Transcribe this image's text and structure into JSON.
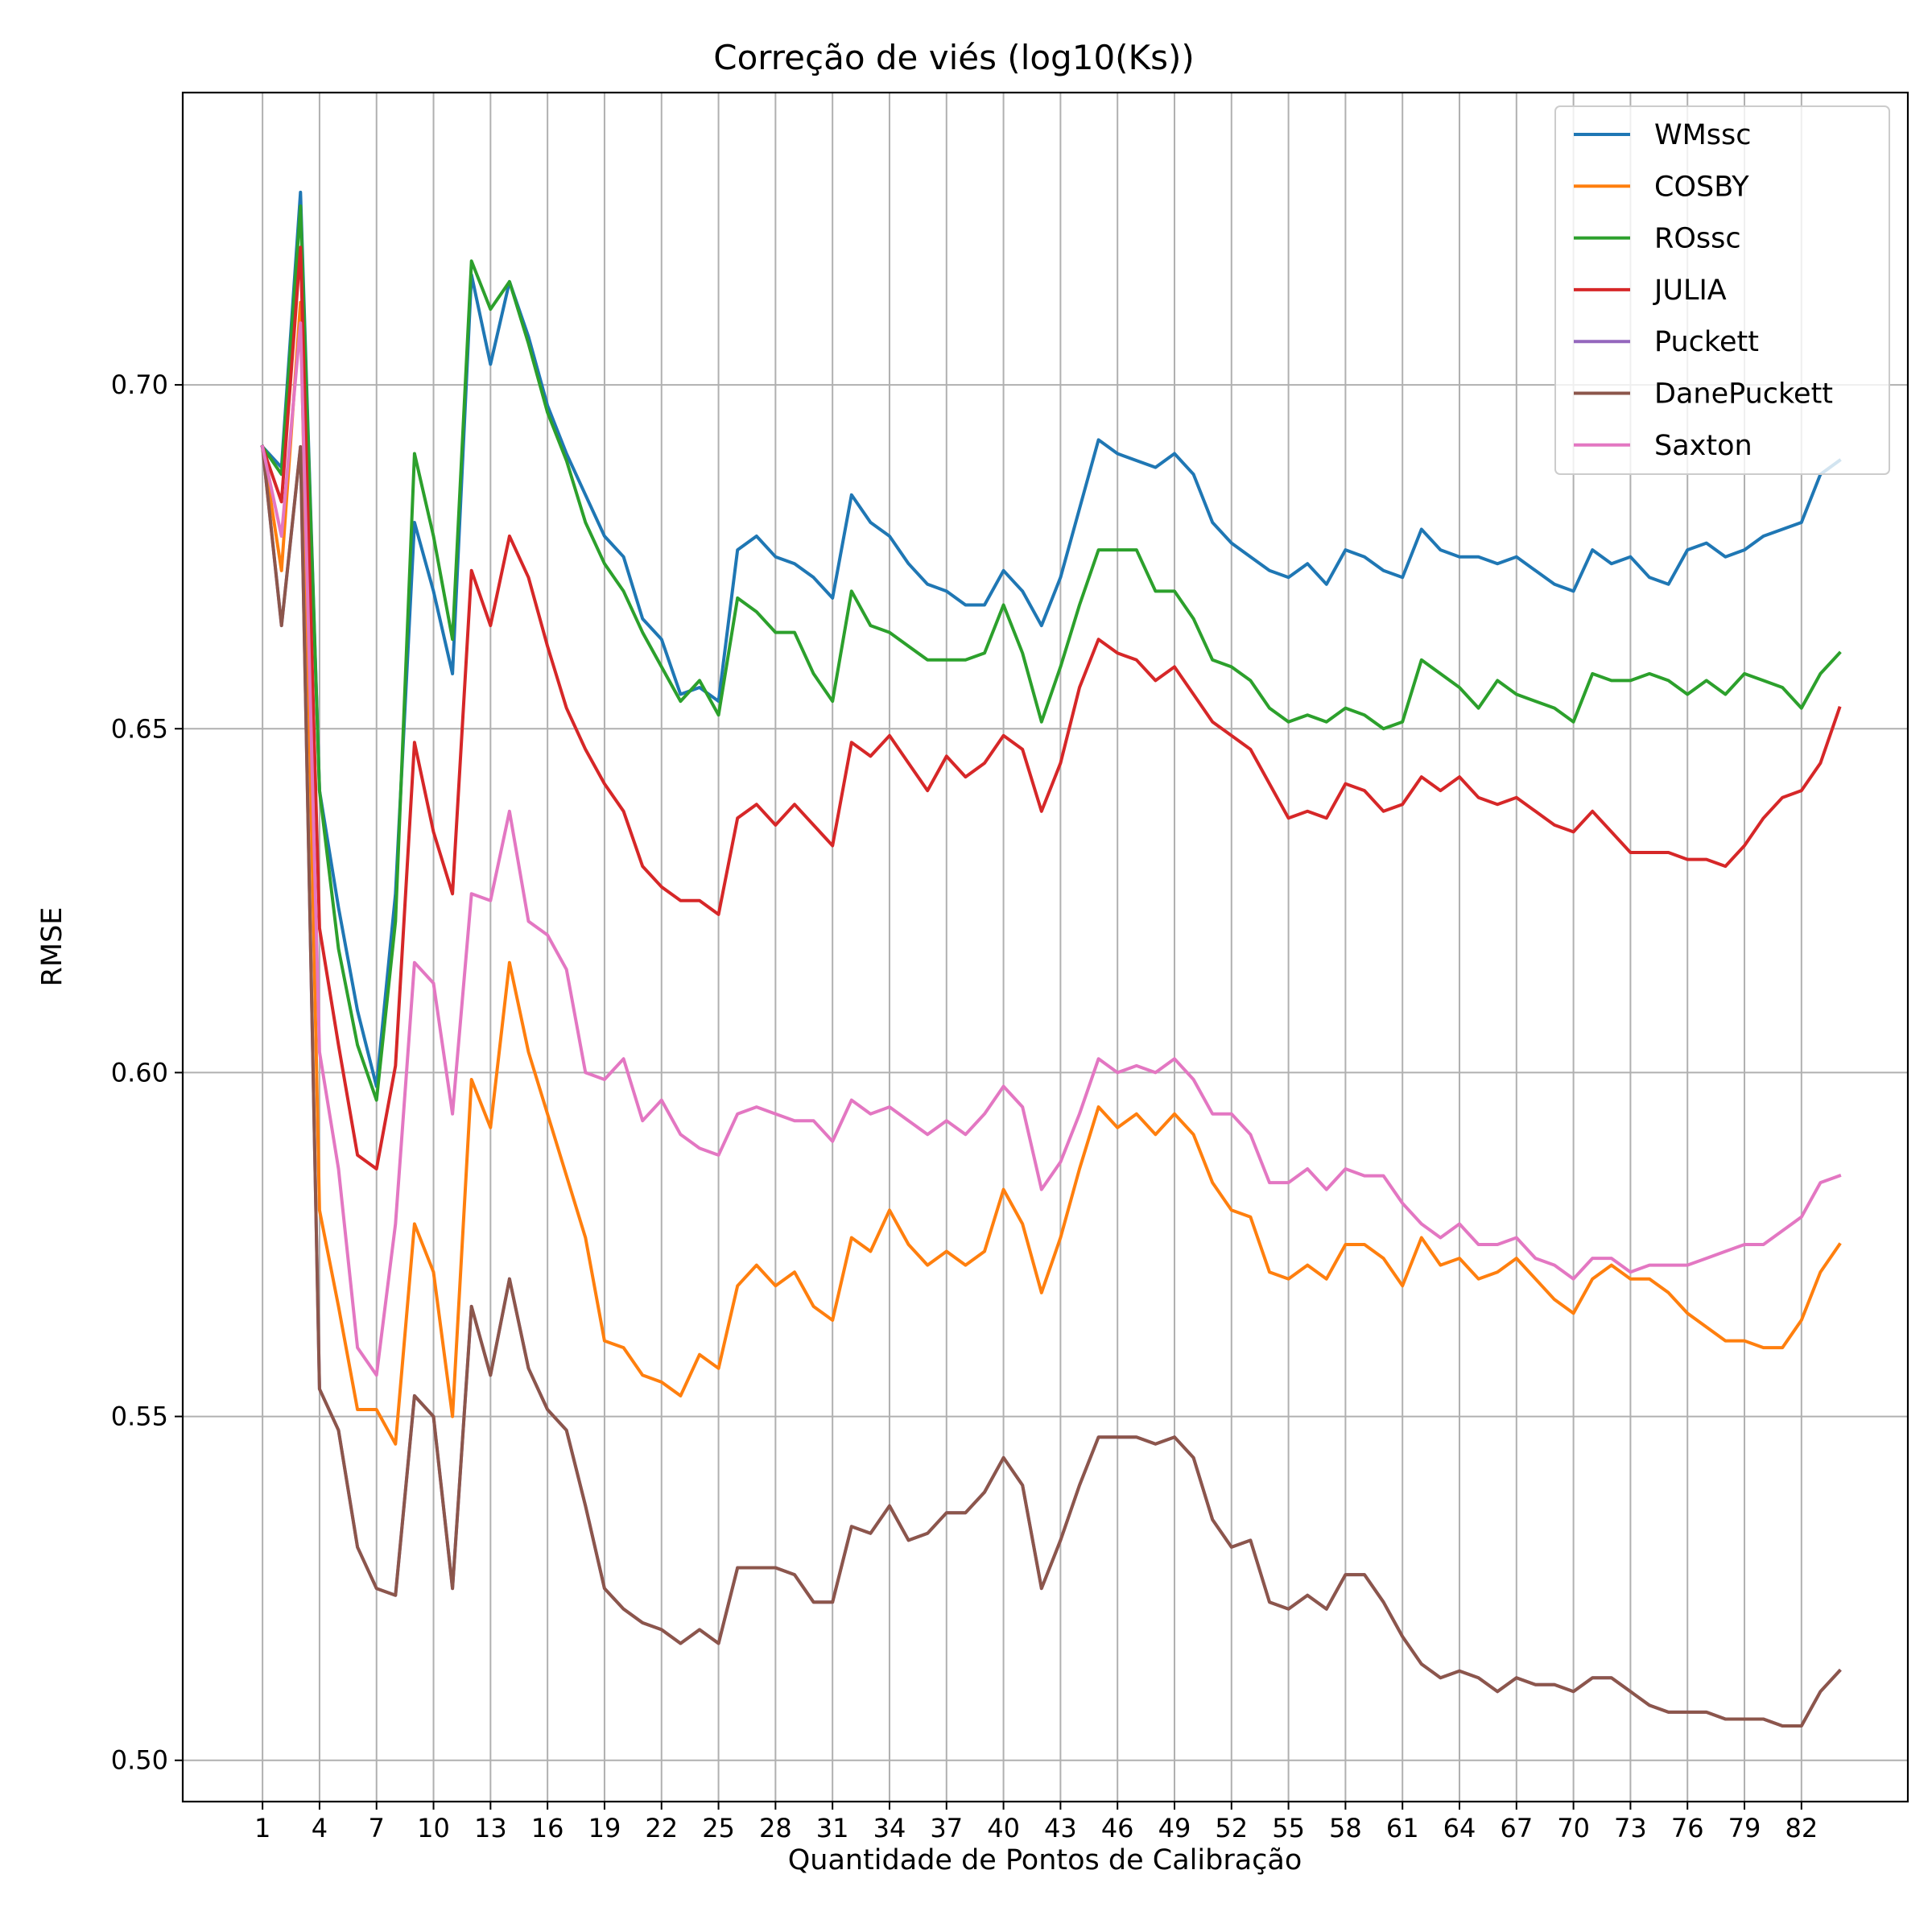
{
  "chart_data": {
    "type": "line",
    "title": "Correção de viés (log10(Ks))",
    "xlabel": "Quantidade de Pontos de Calibração",
    "ylabel": "RMSE",
    "xlim": [
      -3.2,
      87.6
    ],
    "ylim": [
      0.494,
      0.7425
    ],
    "x_ticks": [
      1,
      4,
      7,
      10,
      13,
      16,
      19,
      22,
      25,
      28,
      31,
      34,
      37,
      40,
      43,
      46,
      49,
      52,
      55,
      58,
      61,
      64,
      67,
      70,
      73,
      76,
      79,
      82
    ],
    "y_ticks": [
      0.5,
      0.55,
      0.6,
      0.65,
      0.7
    ],
    "y_tick_labels": [
      "0.50",
      "0.55",
      "0.60",
      "0.65",
      "0.70"
    ],
    "grid": true,
    "legend_position": "top-right",
    "x": [
      1,
      2,
      3,
      4,
      5,
      6,
      7,
      8,
      9,
      10,
      11,
      12,
      13,
      14,
      15,
      16,
      17,
      18,
      19,
      20,
      21,
      22,
      23,
      24,
      25,
      26,
      27,
      28,
      29,
      30,
      31,
      32,
      33,
      34,
      35,
      36,
      37,
      38,
      39,
      40,
      41,
      42,
      43,
      44,
      45,
      46,
      47,
      48,
      49,
      50,
      51,
      52,
      53,
      54,
      55,
      56,
      57,
      58,
      59,
      60,
      61,
      62,
      63,
      64,
      65,
      66,
      67,
      68,
      69,
      70,
      71,
      72,
      73,
      74,
      75,
      76,
      77,
      78,
      79,
      80,
      81,
      82,
      83,
      84
    ],
    "series": [
      {
        "name": "WMssc",
        "color": "#1f77b4",
        "values": [
          0.691,
          0.688,
          0.728,
          0.641,
          0.624,
          0.609,
          0.598,
          0.626,
          0.68,
          0.67,
          0.658,
          0.716,
          0.703,
          0.715,
          0.707,
          0.697,
          0.69,
          0.684,
          0.678,
          0.675,
          0.666,
          0.663,
          0.655,
          0.656,
          0.654,
          0.676,
          0.678,
          0.675,
          0.674,
          0.672,
          0.669,
          0.684,
          0.68,
          0.678,
          0.674,
          0.671,
          0.67,
          0.668,
          0.668,
          0.673,
          0.67,
          0.665,
          0.672,
          0.682,
          0.692,
          0.69,
          0.689,
          0.688,
          0.69,
          0.687,
          0.68,
          0.677,
          0.675,
          0.673,
          0.672,
          0.674,
          0.671,
          0.676,
          0.675,
          0.673,
          0.672,
          0.679,
          0.676,
          0.675,
          0.675,
          0.674,
          0.675,
          0.673,
          0.671,
          0.67,
          0.676,
          0.674,
          0.675,
          0.672,
          0.671,
          0.676,
          0.677,
          0.675,
          0.676,
          0.678,
          0.679,
          0.68,
          0.687,
          0.689
        ]
      },
      {
        "name": "COSBY",
        "color": "#ff7f0e",
        "values": [
          0.691,
          0.673,
          0.712,
          0.58,
          0.566,
          0.551,
          0.551,
          0.546,
          0.578,
          0.571,
          0.55,
          0.599,
          0.592,
          0.616,
          0.603,
          0.594,
          0.585,
          0.576,
          0.561,
          0.56,
          0.556,
          0.555,
          0.553,
          0.559,
          0.557,
          0.569,
          0.572,
          0.569,
          0.571,
          0.566,
          0.564,
          0.576,
          0.574,
          0.58,
          0.575,
          0.572,
          0.574,
          0.572,
          0.574,
          0.583,
          0.578,
          0.568,
          0.576,
          0.586,
          0.595,
          0.592,
          0.594,
          0.591,
          0.594,
          0.591,
          0.584,
          0.58,
          0.579,
          0.571,
          0.57,
          0.572,
          0.57,
          0.575,
          0.575,
          0.573,
          0.569,
          0.576,
          0.572,
          0.573,
          0.57,
          0.571,
          0.573,
          0.57,
          0.567,
          0.565,
          0.57,
          0.572,
          0.57,
          0.57,
          0.568,
          0.565,
          0.563,
          0.561,
          0.561,
          0.56,
          0.56,
          0.564,
          0.571,
          0.575
        ]
      },
      {
        "name": "ROssc",
        "color": "#2ca02c",
        "values": [
          0.691,
          0.687,
          0.726,
          0.641,
          0.618,
          0.604,
          0.596,
          0.622,
          0.69,
          0.678,
          0.663,
          0.718,
          0.711,
          0.715,
          0.706,
          0.696,
          0.689,
          0.68,
          0.674,
          0.67,
          0.664,
          0.659,
          0.654,
          0.657,
          0.652,
          0.669,
          0.667,
          0.664,
          0.664,
          0.658,
          0.654,
          0.67,
          0.665,
          0.664,
          0.662,
          0.66,
          0.66,
          0.66,
          0.661,
          0.668,
          0.661,
          0.651,
          0.659,
          0.668,
          0.676,
          0.676,
          0.676,
          0.67,
          0.67,
          0.666,
          0.66,
          0.659,
          0.657,
          0.653,
          0.651,
          0.652,
          0.651,
          0.653,
          0.652,
          0.65,
          0.651,
          0.66,
          0.658,
          0.656,
          0.653,
          0.657,
          0.655,
          0.654,
          0.653,
          0.651,
          0.658,
          0.657,
          0.657,
          0.658,
          0.657,
          0.655,
          0.657,
          0.655,
          0.658,
          0.657,
          0.656,
          0.653,
          0.658,
          0.661
        ]
      },
      {
        "name": "JULIA",
        "color": "#d62728",
        "values": [
          0.691,
          0.683,
          0.72,
          0.621,
          0.604,
          0.588,
          0.586,
          0.601,
          0.648,
          0.635,
          0.626,
          0.673,
          0.665,
          0.678,
          0.672,
          0.662,
          0.653,
          0.647,
          0.642,
          0.638,
          0.63,
          0.627,
          0.625,
          0.625,
          0.623,
          0.637,
          0.639,
          0.636,
          0.639,
          0.636,
          0.633,
          0.648,
          0.646,
          0.649,
          0.645,
          0.641,
          0.646,
          0.643,
          0.645,
          0.649,
          0.647,
          0.638,
          0.645,
          0.656,
          0.663,
          0.661,
          0.66,
          0.657,
          0.659,
          0.655,
          0.651,
          0.649,
          0.647,
          0.642,
          0.637,
          0.638,
          0.637,
          0.642,
          0.641,
          0.638,
          0.639,
          0.643,
          0.641,
          0.643,
          0.64,
          0.639,
          0.64,
          0.638,
          0.636,
          0.635,
          0.638,
          0.635,
          0.632,
          0.632,
          0.632,
          0.631,
          0.631,
          0.63,
          0.633,
          0.637,
          0.64,
          0.641,
          0.645,
          0.653
        ]
      },
      {
        "name": "Puckett",
        "color": "#9467bd",
        "values": [
          0.691,
          0.665,
          0.691,
          0.554,
          0.548,
          0.531,
          0.525,
          0.524,
          0.553,
          0.55,
          0.525,
          0.566,
          0.556,
          0.57,
          0.557,
          0.551,
          0.548,
          0.537,
          0.525,
          0.522,
          0.52,
          0.519,
          0.517,
          0.519,
          0.517,
          0.528,
          0.528,
          0.528,
          0.527,
          0.523,
          0.523,
          0.534,
          0.533,
          0.537,
          0.532,
          0.533,
          0.536,
          0.536,
          0.539,
          0.544,
          0.54,
          0.525,
          0.532,
          0.54,
          0.547,
          0.547,
          0.547,
          0.546,
          0.547,
          0.544,
          0.535,
          0.531,
          0.532,
          0.523,
          0.522,
          0.524,
          0.522,
          0.527,
          0.527,
          0.523,
          0.518,
          0.514,
          0.512,
          0.513,
          0.512,
          0.51,
          0.512,
          0.511,
          0.511,
          0.51,
          0.512,
          0.512,
          0.51,
          0.508,
          0.507,
          0.507,
          0.507,
          0.506,
          0.506,
          0.506,
          0.505,
          0.505,
          0.51,
          0.513
        ]
      },
      {
        "name": "DanePuckett",
        "color": "#8c564b",
        "values": [
          0.691,
          0.665,
          0.691,
          0.554,
          0.548,
          0.531,
          0.525,
          0.524,
          0.553,
          0.55,
          0.525,
          0.566,
          0.556,
          0.57,
          0.557,
          0.551,
          0.548,
          0.537,
          0.525,
          0.522,
          0.52,
          0.519,
          0.517,
          0.519,
          0.517,
          0.528,
          0.528,
          0.528,
          0.527,
          0.523,
          0.523,
          0.534,
          0.533,
          0.537,
          0.532,
          0.533,
          0.536,
          0.536,
          0.539,
          0.544,
          0.54,
          0.525,
          0.532,
          0.54,
          0.547,
          0.547,
          0.547,
          0.546,
          0.547,
          0.544,
          0.535,
          0.531,
          0.532,
          0.523,
          0.522,
          0.524,
          0.522,
          0.527,
          0.527,
          0.523,
          0.518,
          0.514,
          0.512,
          0.513,
          0.512,
          0.51,
          0.512,
          0.511,
          0.511,
          0.51,
          0.512,
          0.512,
          0.51,
          0.508,
          0.507,
          0.507,
          0.507,
          0.506,
          0.506,
          0.506,
          0.505,
          0.505,
          0.51,
          0.513
        ]
      },
      {
        "name": "Saxton",
        "color": "#e377c2",
        "values": [
          0.691,
          0.678,
          0.709,
          0.603,
          0.586,
          0.56,
          0.556,
          0.578,
          0.616,
          0.613,
          0.594,
          0.626,
          0.625,
          0.638,
          0.622,
          0.62,
          0.615,
          0.6,
          0.599,
          0.602,
          0.593,
          0.596,
          0.591,
          0.589,
          0.588,
          0.594,
          0.595,
          0.594,
          0.593,
          0.593,
          0.59,
          0.596,
          0.594,
          0.595,
          0.593,
          0.591,
          0.593,
          0.591,
          0.594,
          0.598,
          0.595,
          0.583,
          0.587,
          0.594,
          0.602,
          0.6,
          0.601,
          0.6,
          0.602,
          0.599,
          0.594,
          0.594,
          0.591,
          0.584,
          0.584,
          0.586,
          0.583,
          0.586,
          0.585,
          0.585,
          0.581,
          0.578,
          0.576,
          0.578,
          0.575,
          0.575,
          0.576,
          0.573,
          0.572,
          0.57,
          0.573,
          0.573,
          0.571,
          0.572,
          0.572,
          0.572,
          0.573,
          0.574,
          0.575,
          0.575,
          0.577,
          0.579,
          0.584,
          0.585
        ]
      }
    ]
  }
}
